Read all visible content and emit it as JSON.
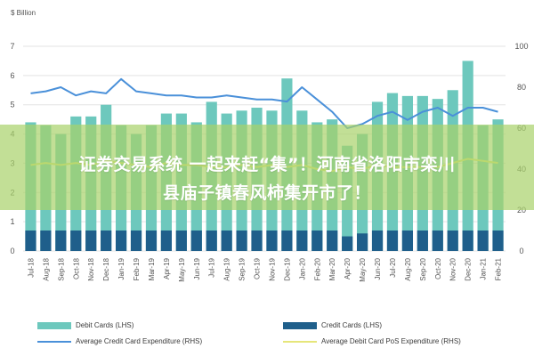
{
  "chart_data": {
    "type": "bar",
    "unit_label": "$ Billion",
    "categories": [
      "Jul-18",
      "Aug-18",
      "Sep-18",
      "Oct-18",
      "Nov-18",
      "Dec-18",
      "Jan-19",
      "Feb-19",
      "Mar-19",
      "Apr-19",
      "May-19",
      "Jun-19",
      "Jul-19",
      "Aug-19",
      "Sep-19",
      "Oct-19",
      "Nov-19",
      "Dec-19",
      "Jan-20",
      "Feb-20",
      "Mar-20",
      "Apr-20",
      "May-20",
      "Jun-20",
      "Jul-20",
      "Aug-20",
      "Sep-20",
      "Oct-20",
      "Nov-20",
      "Dec-20",
      "Jan-21",
      "Feb-21"
    ],
    "left_axis": {
      "min": 0,
      "max": 7,
      "ticks": [
        0,
        1,
        2,
        3,
        4,
        5,
        6,
        7
      ]
    },
    "right_axis": {
      "min": 0,
      "max": 100,
      "ticks": [
        0,
        20,
        40,
        60,
        80,
        100
      ]
    },
    "series": [
      {
        "name": "Debit Cards (LHS)",
        "kind": "bar",
        "axis": "left",
        "color": "#6dc8bd",
        "values": [
          4.4,
          4.3,
          4.0,
          4.6,
          4.6,
          5.0,
          4.3,
          4.0,
          4.3,
          4.7,
          4.7,
          4.4,
          5.1,
          4.7,
          4.8,
          4.9,
          4.8,
          5.9,
          4.8,
          4.4,
          4.5,
          3.6,
          4.0,
          5.1,
          5.4,
          5.3,
          5.3,
          5.2,
          5.5,
          6.5,
          4.3,
          4.5
        ]
      },
      {
        "name": "Credit Cards (LHS)",
        "kind": "bar",
        "axis": "left",
        "color": "#1f5f8b",
        "values": [
          0.7,
          0.7,
          0.7,
          0.7,
          0.7,
          0.7,
          0.7,
          0.7,
          0.7,
          0.7,
          0.7,
          0.7,
          0.7,
          0.7,
          0.7,
          0.7,
          0.7,
          0.7,
          0.7,
          0.7,
          0.7,
          0.5,
          0.6,
          0.7,
          0.7,
          0.7,
          0.7,
          0.7,
          0.7,
          0.7,
          0.7,
          0.7
        ]
      },
      {
        "name": "Average Credit Card Expenditure (RHS)",
        "kind": "line",
        "axis": "right",
        "color": "#4a90d9",
        "values": [
          77,
          78,
          80,
          76,
          78,
          77,
          84,
          78,
          77,
          76,
          76,
          75,
          75,
          76,
          75,
          74,
          74,
          73,
          80,
          74,
          68,
          60,
          62,
          66,
          68,
          64,
          68,
          70,
          66,
          70,
          70,
          68
        ]
      },
      {
        "name": "Average Debit Card PoS Expenditure (RHS)",
        "kind": "line",
        "axis": "right",
        "color": "#e6e67a",
        "values": [
          42,
          43,
          42,
          43,
          42,
          44,
          43,
          42,
          41,
          43,
          42,
          42,
          41,
          41,
          42,
          41,
          42,
          41,
          42,
          40,
          39,
          41,
          40,
          42,
          41,
          41,
          41,
          41,
          43,
          45,
          44,
          43
        ]
      }
    ]
  },
  "overlay": {
    "line1": "证券交易系统 一起来赶“集”！河南省洛阳市栾川",
    "line2": "县庙子镇春风柿集开市了！"
  }
}
